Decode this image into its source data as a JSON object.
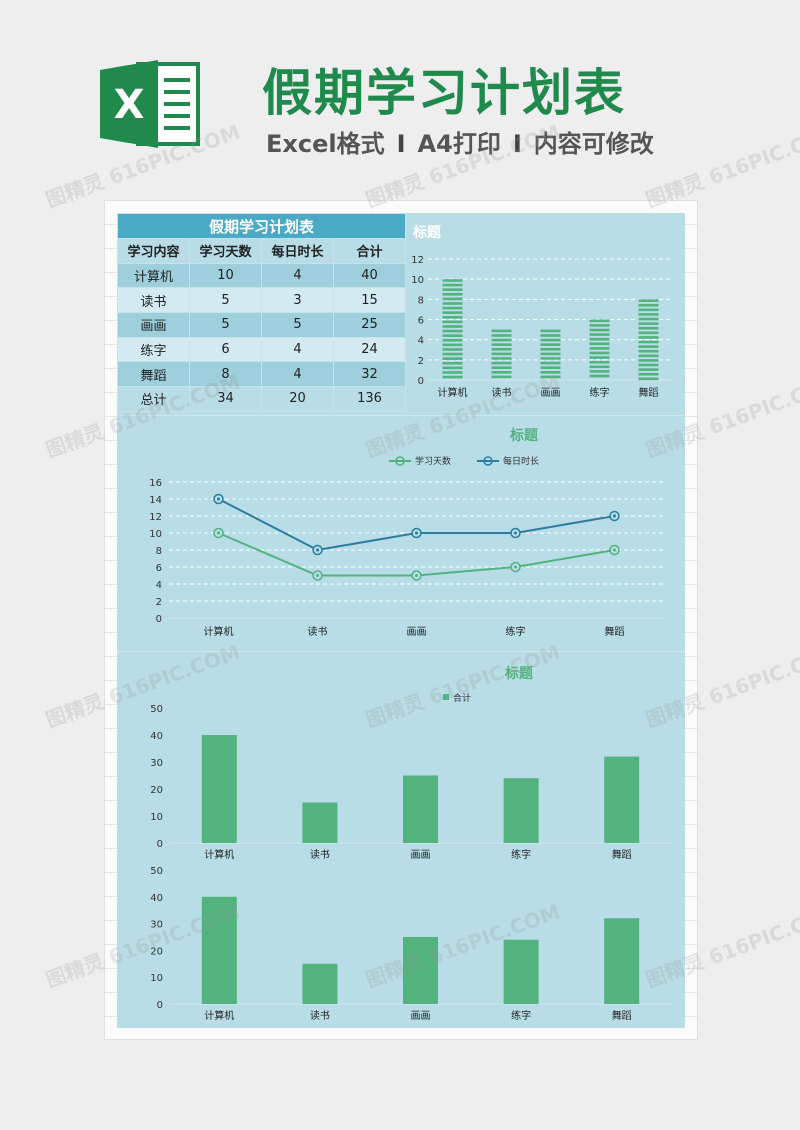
{
  "header": {
    "logo_letter": "X",
    "title": "假期学习计划表",
    "subtitle": {
      "part1": "Excel格式",
      "sep": "I",
      "part2": "A4打印",
      "part3": "内容可修改"
    }
  },
  "table": {
    "title": "假期学习计划表",
    "headers": [
      "学习内容",
      "学习天数",
      "每日时长",
      "合计"
    ],
    "rows": [
      [
        "计算机",
        "10",
        "4",
        "40"
      ],
      [
        "读书",
        "5",
        "3",
        "15"
      ],
      [
        "画画",
        "5",
        "5",
        "25"
      ],
      [
        "练字",
        "6",
        "4",
        "24"
      ],
      [
        "舞蹈",
        "8",
        "4",
        "32"
      ],
      [
        "总计",
        "34",
        "20",
        "136"
      ]
    ]
  },
  "colors": {
    "brand_green": "#1f8a4c",
    "panel_bg": "#b8dde6",
    "table_title_bg": "#4aa9c4",
    "series_green": "#52b37f",
    "series_blue": "#2a7ca0"
  },
  "watermark": "图精灵 616PIC.COM",
  "chart_data": [
    {
      "type": "bar",
      "title": "标题",
      "categories": [
        "计算机",
        "读书",
        "画画",
        "练字",
        "舞蹈"
      ],
      "values": [
        10,
        5,
        5,
        6,
        8
      ],
      "ylim": [
        0,
        12
      ],
      "yticks": [
        0,
        2,
        4,
        6,
        8,
        10,
        12
      ],
      "grid": true,
      "style": "striped"
    },
    {
      "type": "line",
      "title": "标题",
      "categories": [
        "计算机",
        "读书",
        "画画",
        "练字",
        "舞蹈"
      ],
      "series": [
        {
          "name": "学习天数",
          "values": [
            10,
            5,
            5,
            6,
            8
          ],
          "color": "#52b37f"
        },
        {
          "name": "每日时长",
          "values": [
            14,
            8,
            10,
            10,
            12
          ],
          "color": "#2a7ca0"
        }
      ],
      "ylim": [
        0,
        16
      ],
      "yticks": [
        0,
        2,
        4,
        6,
        8,
        10,
        12,
        14,
        16
      ],
      "grid": true,
      "legend": "top"
    },
    {
      "type": "bar",
      "title": "标题",
      "categories": [
        "计算机",
        "读书",
        "画画",
        "练字",
        "舞蹈"
      ],
      "series": [
        {
          "name": "合计",
          "values": [
            40,
            15,
            25,
            24,
            32
          ]
        }
      ],
      "ylim": [
        0,
        50
      ],
      "yticks": [
        0,
        10,
        20,
        30,
        40,
        50
      ],
      "legend": "top"
    },
    {
      "type": "bar",
      "title": "",
      "categories": [
        "计算机",
        "读书",
        "画画",
        "练字",
        "舞蹈"
      ],
      "values": [
        40,
        15,
        25,
        24,
        32
      ],
      "ylim": [
        0,
        50
      ],
      "yticks": [
        0,
        10,
        20,
        30,
        40,
        50
      ]
    }
  ]
}
